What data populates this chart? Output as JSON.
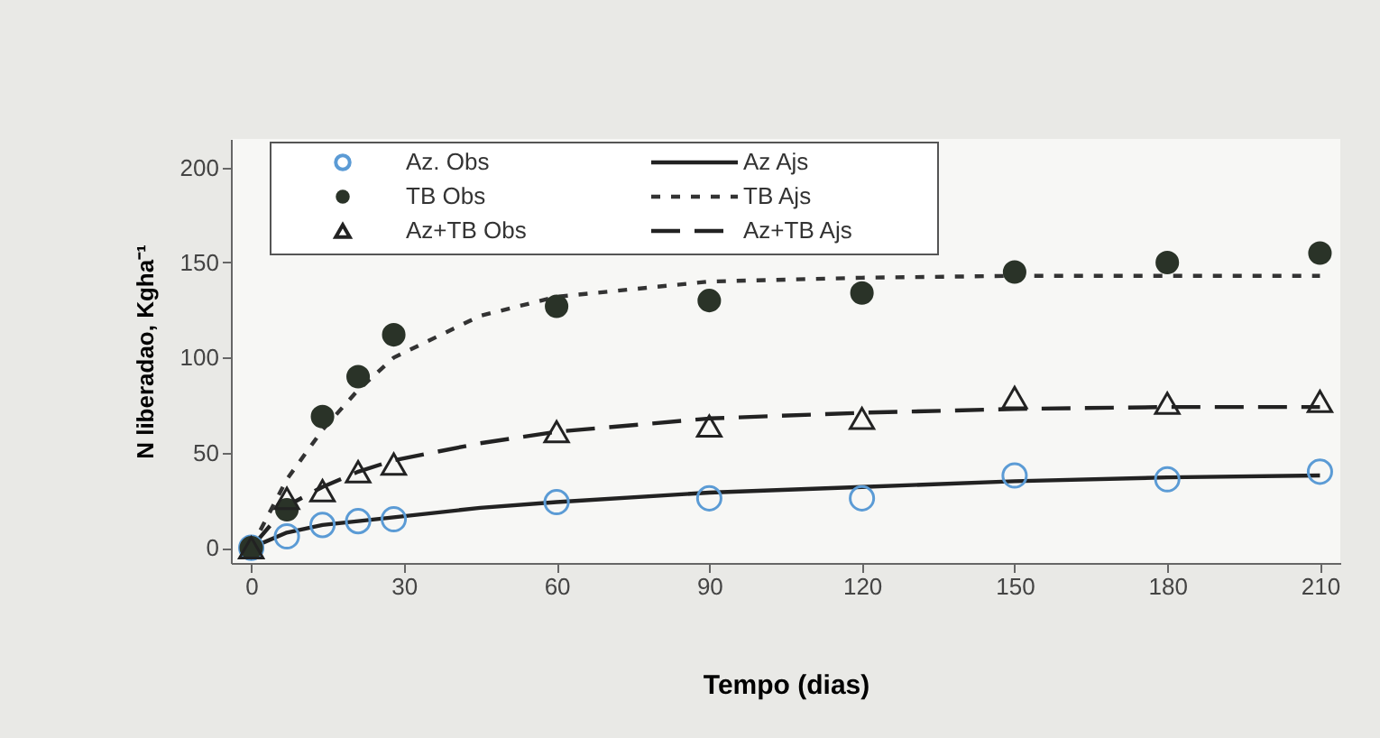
{
  "chart_data": {
    "type": "scatter",
    "xlabel": "Tempo (dias)",
    "ylabel": "N liberadao, Kgha⁻¹",
    "xlim": [
      -4,
      214
    ],
    "ylim": [
      -8,
      215
    ],
    "xticks": [
      0,
      30,
      60,
      90,
      120,
      150,
      180,
      210
    ],
    "yticks": [
      0,
      50,
      100,
      150,
      200
    ],
    "grid": false,
    "legend": "top left",
    "series": [
      {
        "name": "Az. Obs",
        "marker": "circle",
        "color": "#5b9bd5",
        "x": [
          0,
          7,
          14,
          21,
          28,
          60,
          90,
          120,
          150,
          180,
          210
        ],
        "values": [
          0,
          6,
          12,
          14,
          15,
          24,
          26,
          26,
          38,
          36,
          40
        ]
      },
      {
        "name": "TB Obs",
        "marker": "circle",
        "color": "#2a3328",
        "x": [
          0,
          7,
          14,
          21,
          28,
          60,
          90,
          120,
          150,
          180,
          210
        ],
        "values": [
          0,
          20,
          69,
          90,
          112,
          127,
          130,
          134,
          145,
          150,
          155
        ]
      },
      {
        "name": "Az+TB Obs",
        "marker": "triangle",
        "color": "#222222",
        "x": [
          0,
          7,
          14,
          21,
          28,
          60,
          90,
          120,
          150,
          180,
          210
        ],
        "values": [
          0,
          26,
          30,
          40,
          44,
          61,
          64,
          68,
          79,
          76,
          77
        ]
      },
      {
        "name": "Az Ajs",
        "type": "line",
        "line_style": "solid",
        "color": "#222222",
        "x": [
          0,
          7,
          14,
          21,
          28,
          45,
          60,
          90,
          120,
          150,
          180,
          210
        ],
        "values": [
          0,
          8,
          12,
          14,
          16,
          21,
          24,
          29,
          32,
          35,
          37,
          38
        ]
      },
      {
        "name": "TB Ajs",
        "type": "line",
        "line_style": "dotted",
        "color": "#333333",
        "x": [
          0,
          7,
          14,
          21,
          28,
          45,
          60,
          90,
          120,
          150,
          180,
          210
        ],
        "values": [
          0,
          36,
          62,
          83,
          100,
          122,
          132,
          140,
          142,
          143,
          143,
          143
        ]
      },
      {
        "name": "Az+TB Ajs",
        "type": "line",
        "line_style": "dashed",
        "color": "#222222",
        "x": [
          0,
          7,
          14,
          21,
          28,
          45,
          60,
          90,
          120,
          150,
          180,
          210
        ],
        "values": [
          0,
          22,
          32,
          40,
          46,
          55,
          61,
          68,
          71,
          73,
          74,
          74
        ]
      }
    ]
  }
}
